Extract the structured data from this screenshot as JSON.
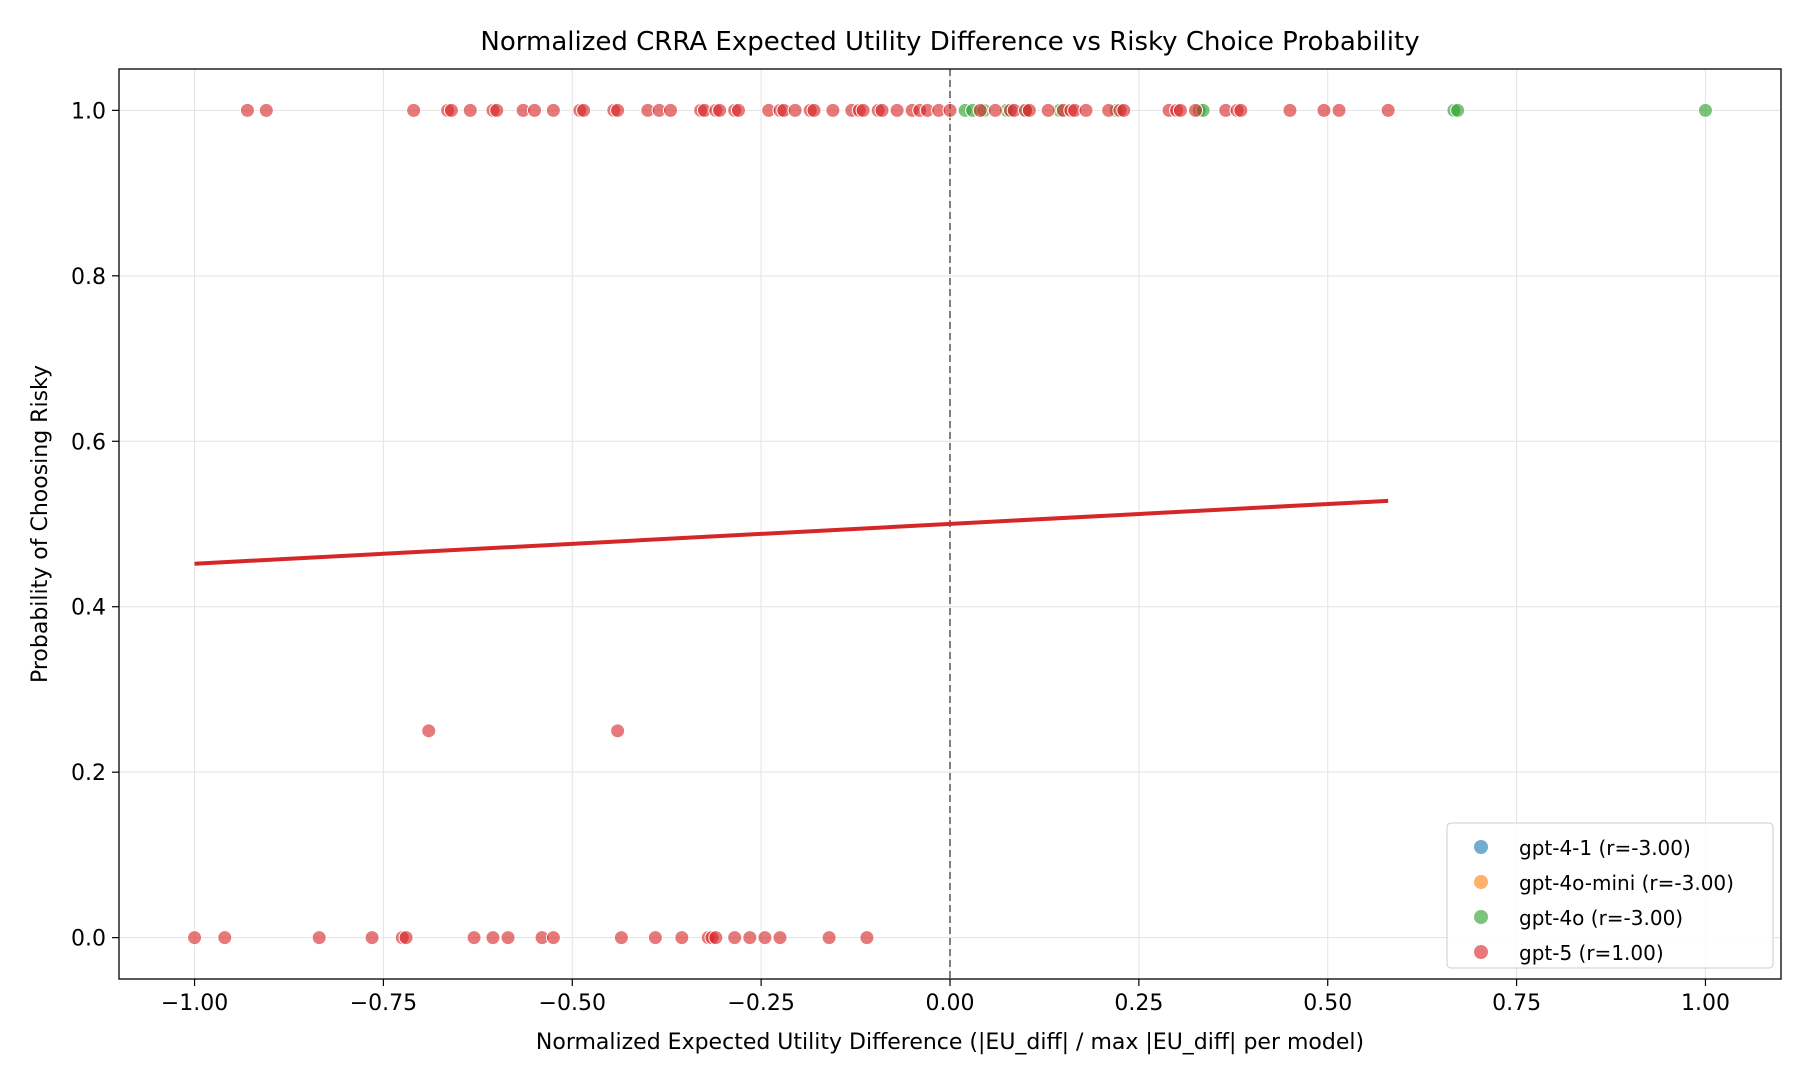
{
  "chart_data": {
    "type": "scatter",
    "title": "Normalized CRRA Expected Utility Difference vs Risky Choice Probability",
    "xlabel": "Normalized Expected Utility Difference (|EU_diff| / max |EU_diff| per model)",
    "ylabel": "Probability of Choosing Risky",
    "xlim": [
      -1.1,
      1.1
    ],
    "ylim": [
      -0.05,
      1.05
    ],
    "xticks": [
      -1.0,
      -0.75,
      -0.5,
      -0.25,
      0.0,
      0.25,
      0.5,
      0.75,
      1.0
    ],
    "xtick_labels": [
      "−1.00",
      "−0.75",
      "−0.50",
      "−0.25",
      "0.00",
      "0.25",
      "0.50",
      "0.75",
      "1.00"
    ],
    "yticks": [
      0.0,
      0.2,
      0.4,
      0.6,
      0.8,
      1.0
    ],
    "ytick_labels": [
      "0.0",
      "0.2",
      "0.4",
      "0.6",
      "0.8",
      "1.0"
    ],
    "grid": true,
    "legend_position": "lower-right",
    "vertical_reference_line": {
      "x": 0.0,
      "style": "dashed",
      "color": "#808080"
    },
    "trend_line": {
      "x": [
        -1.0,
        0.58
      ],
      "y": [
        0.452,
        0.528
      ],
      "color": "#d62728"
    },
    "series": [
      {
        "name": "gpt-4-1 (r=-3.00)",
        "color": "#1f77b4",
        "points": []
      },
      {
        "name": "gpt-4o-mini (r=-3.00)",
        "color": "#ff7f0e",
        "points": []
      },
      {
        "name": "gpt-4o (r=-3.00)",
        "color": "#2ca02c",
        "points": [
          [
            0.02,
            1.0
          ],
          [
            0.03,
            1.0
          ],
          [
            0.045,
            1.0
          ],
          [
            0.075,
            1.0
          ],
          [
            0.1,
            1.0
          ],
          [
            0.145,
            1.0
          ],
          [
            0.22,
            1.0
          ],
          [
            0.33,
            1.0
          ],
          [
            0.335,
            1.0
          ],
          [
            0.667,
            1.0
          ],
          [
            0.672,
            1.0
          ],
          [
            1.0,
            1.0
          ]
        ]
      },
      {
        "name": "gpt-5 (r=1.00)",
        "color": "#d62728",
        "points": [
          [
            -0.93,
            1.0
          ],
          [
            -0.905,
            1.0
          ],
          [
            -0.71,
            1.0
          ],
          [
            -0.665,
            1.0
          ],
          [
            -0.66,
            1.0
          ],
          [
            -0.635,
            1.0
          ],
          [
            -0.605,
            1.0
          ],
          [
            -0.6,
            1.0
          ],
          [
            -0.565,
            1.0
          ],
          [
            -0.55,
            1.0
          ],
          [
            -0.525,
            1.0
          ],
          [
            -0.49,
            1.0
          ],
          [
            -0.485,
            1.0
          ],
          [
            -0.445,
            1.0
          ],
          [
            -0.44,
            1.0
          ],
          [
            -0.4,
            1.0
          ],
          [
            -0.385,
            1.0
          ],
          [
            -0.37,
            1.0
          ],
          [
            -0.33,
            1.0
          ],
          [
            -0.325,
            1.0
          ],
          [
            -0.31,
            1.0
          ],
          [
            -0.305,
            1.0
          ],
          [
            -0.285,
            1.0
          ],
          [
            -0.28,
            1.0
          ],
          [
            -0.24,
            1.0
          ],
          [
            -0.225,
            1.0
          ],
          [
            -0.22,
            1.0
          ],
          [
            -0.205,
            1.0
          ],
          [
            -0.185,
            1.0
          ],
          [
            -0.18,
            1.0
          ],
          [
            -0.155,
            1.0
          ],
          [
            -0.13,
            1.0
          ],
          [
            -0.12,
            1.0
          ],
          [
            -0.115,
            1.0
          ],
          [
            -0.095,
            1.0
          ],
          [
            -0.09,
            1.0
          ],
          [
            -0.07,
            1.0
          ],
          [
            -0.05,
            1.0
          ],
          [
            -0.04,
            1.0
          ],
          [
            -0.03,
            1.0
          ],
          [
            -0.015,
            1.0
          ],
          [
            0.0,
            1.0
          ],
          [
            0.04,
            1.0
          ],
          [
            0.06,
            1.0
          ],
          [
            0.08,
            1.0
          ],
          [
            0.085,
            1.0
          ],
          [
            0.1,
            1.0
          ],
          [
            0.105,
            1.0
          ],
          [
            0.13,
            1.0
          ],
          [
            0.15,
            1.0
          ],
          [
            0.16,
            1.0
          ],
          [
            0.165,
            1.0
          ],
          [
            0.18,
            1.0
          ],
          [
            0.21,
            1.0
          ],
          [
            0.225,
            1.0
          ],
          [
            0.23,
            1.0
          ],
          [
            0.29,
            1.0
          ],
          [
            0.3,
            1.0
          ],
          [
            0.305,
            1.0
          ],
          [
            0.325,
            1.0
          ],
          [
            0.365,
            1.0
          ],
          [
            0.38,
            1.0
          ],
          [
            0.385,
            1.0
          ],
          [
            0.45,
            1.0
          ],
          [
            0.495,
            1.0
          ],
          [
            0.515,
            1.0
          ],
          [
            0.58,
            1.0
          ],
          [
            -0.69,
            0.25
          ],
          [
            -0.44,
            0.25
          ],
          [
            -1.0,
            0.0
          ],
          [
            -0.96,
            0.0
          ],
          [
            -0.835,
            0.0
          ],
          [
            -0.765,
            0.0
          ],
          [
            -0.725,
            0.0
          ],
          [
            -0.72,
            0.0
          ],
          [
            -0.63,
            0.0
          ],
          [
            -0.605,
            0.0
          ],
          [
            -0.585,
            0.0
          ],
          [
            -0.54,
            0.0
          ],
          [
            -0.525,
            0.0
          ],
          [
            -0.435,
            0.0
          ],
          [
            -0.39,
            0.0
          ],
          [
            -0.355,
            0.0
          ],
          [
            -0.32,
            0.0
          ],
          [
            -0.315,
            0.0
          ],
          [
            -0.31,
            0.0
          ],
          [
            -0.285,
            0.0
          ],
          [
            -0.265,
            0.0
          ],
          [
            -0.245,
            0.0
          ],
          [
            -0.225,
            0.0
          ],
          [
            -0.16,
            0.0
          ],
          [
            -0.11,
            0.0
          ]
        ]
      }
    ]
  }
}
